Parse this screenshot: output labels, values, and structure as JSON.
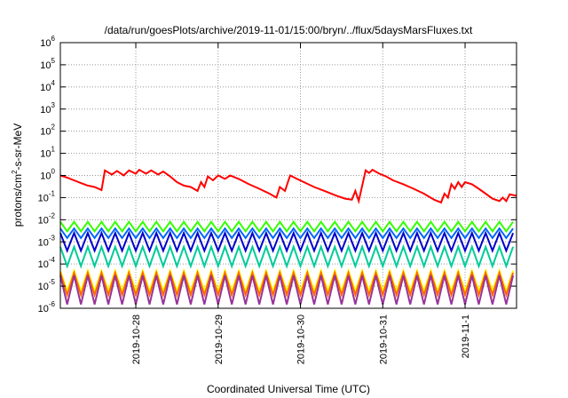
{
  "chart_data": {
    "type": "line",
    "title": "/data/run/goesPlots/archive/2019-11-01/15:00/bryn/../flux/5daysMarsFluxes.txt",
    "xlabel": "Coordinated Universal Time (UTC)",
    "ylabel": "protons/cm²-s-sr-MeV",
    "ylabel_parts": {
      "base": "protons/cm",
      "sup": "2",
      "rest": "-s-sr-MeV"
    },
    "y_scale": "log",
    "ylim": [
      1e-06,
      1000000.0
    ],
    "y_ticks": [
      {
        "base": "10",
        "exp": "-6",
        "value": 1e-06
      },
      {
        "base": "10",
        "exp": "-5",
        "value": 1e-05
      },
      {
        "base": "10",
        "exp": "-4",
        "value": 0.0001
      },
      {
        "base": "10",
        "exp": "-3",
        "value": 0.001
      },
      {
        "base": "10",
        "exp": "-2",
        "value": 0.01
      },
      {
        "base": "10",
        "exp": "-1",
        "value": 0.1
      },
      {
        "base": "10",
        "exp": "0",
        "value": 1
      },
      {
        "base": "10",
        "exp": "1",
        "value": 10.0
      },
      {
        "base": "10",
        "exp": "2",
        "value": 100.0
      },
      {
        "base": "10",
        "exp": "3",
        "value": 1000.0
      },
      {
        "base": "10",
        "exp": "4",
        "value": 10000.0
      },
      {
        "base": "10",
        "exp": "5",
        "value": 100000.0
      },
      {
        "base": "10",
        "exp": "6",
        "value": 1000000.0
      }
    ],
    "xlim": [
      "2019-10-27T02:00",
      "2019-11-01T15:00"
    ],
    "x_ticks": [
      "2019-10-28",
      "2019-10-29",
      "2019-10-30",
      "2019-10-31",
      "2019-11-1"
    ],
    "grid": true,
    "series": [
      {
        "color": "#ff0000",
        "points": [
          [
            "2019-10-27T02:00",
            1.0
          ],
          [
            "2019-10-27T04:00",
            0.8
          ],
          [
            "2019-10-27T06:00",
            0.6
          ],
          [
            "2019-10-27T08:00",
            0.45
          ],
          [
            "2019-10-27T10:00",
            0.35
          ],
          [
            "2019-10-27T12:00",
            0.3
          ],
          [
            "2019-10-27T14:00",
            0.22
          ],
          [
            "2019-10-27T15:00",
            1.7
          ],
          [
            "2019-10-27T17:00",
            1.1
          ],
          [
            "2019-10-27T18:30",
            1.6
          ],
          [
            "2019-10-27T20:30",
            1.0
          ],
          [
            "2019-10-27T22:00",
            1.7
          ],
          [
            "2019-10-28T00:00",
            1.2
          ],
          [
            "2019-10-28T01:00",
            1.8
          ],
          [
            "2019-10-28T03:00",
            1.2
          ],
          [
            "2019-10-28T04:30",
            1.7
          ],
          [
            "2019-10-28T06:30",
            1.1
          ],
          [
            "2019-10-28T08:00",
            1.5
          ],
          [
            "2019-10-28T10:00",
            0.9
          ],
          [
            "2019-10-28T12:00",
            0.5
          ],
          [
            "2019-10-28T14:00",
            0.35
          ],
          [
            "2019-10-28T16:00",
            0.3
          ],
          [
            "2019-10-28T18:00",
            0.2
          ],
          [
            "2019-10-28T19:00",
            0.5
          ],
          [
            "2019-10-28T20:00",
            0.3
          ],
          [
            "2019-10-28T21:00",
            0.9
          ],
          [
            "2019-10-28T22:30",
            0.6
          ],
          [
            "2019-10-29T00:00",
            1.0
          ],
          [
            "2019-10-29T02:00",
            0.7
          ],
          [
            "2019-10-29T03:30",
            1.0
          ],
          [
            "2019-10-29T06:00",
            0.7
          ],
          [
            "2019-10-29T09:00",
            0.4
          ],
          [
            "2019-10-29T12:00",
            0.25
          ],
          [
            "2019-10-29T15:00",
            0.15
          ],
          [
            "2019-10-29T17:00",
            0.1
          ],
          [
            "2019-10-29T18:00",
            0.3
          ],
          [
            "2019-10-29T19:30",
            0.2
          ],
          [
            "2019-10-29T21:00",
            1.0
          ],
          [
            "2019-10-29T23:00",
            0.7
          ],
          [
            "2019-10-30T01:00",
            0.5
          ],
          [
            "2019-10-30T04:00",
            0.3
          ],
          [
            "2019-10-30T07:00",
            0.2
          ],
          [
            "2019-10-30T10:00",
            0.13
          ],
          [
            "2019-10-30T13:00",
            0.09
          ],
          [
            "2019-10-30T15:00",
            0.08
          ],
          [
            "2019-10-30T16:00",
            0.2
          ],
          [
            "2019-10-30T17:00",
            0.07
          ],
          [
            "2019-10-30T19:00",
            1.7
          ],
          [
            "2019-10-30T20:00",
            1.3
          ],
          [
            "2019-10-30T21:00",
            1.8
          ],
          [
            "2019-10-30T23:00",
            1.2
          ],
          [
            "2019-10-31T01:00",
            0.9
          ],
          [
            "2019-10-31T03:00",
            0.6
          ],
          [
            "2019-10-31T06:00",
            0.4
          ],
          [
            "2019-10-31T09:00",
            0.25
          ],
          [
            "2019-10-31T12:00",
            0.15
          ],
          [
            "2019-10-31T15:00",
            0.08
          ],
          [
            "2019-10-31T17:00",
            0.06
          ],
          [
            "2019-10-31T18:00",
            0.15
          ],
          [
            "2019-10-31T19:00",
            0.1
          ],
          [
            "2019-10-31T20:00",
            0.4
          ],
          [
            "2019-10-31T21:00",
            0.25
          ],
          [
            "2019-10-31T22:00",
            0.5
          ],
          [
            "2019-10-31T23:00",
            0.3
          ],
          [
            "2019-11-01T00:00",
            0.5
          ],
          [
            "2019-11-01T02:00",
            0.4
          ],
          [
            "2019-11-01T04:00",
            0.25
          ],
          [
            "2019-11-01T06:00",
            0.15
          ],
          [
            "2019-11-01T08:00",
            0.09
          ],
          [
            "2019-11-01T10:00",
            0.07
          ],
          [
            "2019-11-01T11:00",
            0.1
          ],
          [
            "2019-11-01T12:00",
            0.07
          ],
          [
            "2019-11-01T13:00",
            0.14
          ],
          [
            "2019-11-01T15:00",
            0.12
          ]
        ]
      },
      {
        "color": "#33ff00",
        "start": "2019-10-27T02:00",
        "period_hours": 4,
        "high": 0.008,
        "low": 0.003
      },
      {
        "color": "#0066ff",
        "start": "2019-10-27T02:00",
        "period_hours": 4,
        "high": 0.004,
        "low": 0.0015
      },
      {
        "color": "#0000cc",
        "start": "2019-10-27T02:00",
        "period_hours": 4,
        "high": 0.0025,
        "low": 0.0004
      },
      {
        "color": "#00cc99",
        "start": "2019-10-27T02:00",
        "period_hours": 4,
        "high": 0.0006,
        "low": 8e-05
      },
      {
        "color": "#ffff00",
        "start": "2019-10-27T02:00",
        "period_hours": 4,
        "high": 5e-05,
        "low": 6e-06
      },
      {
        "color": "#ff6600",
        "start": "2019-10-27T02:00",
        "period_hours": 4,
        "high": 4e-05,
        "low": 4e-06
      },
      {
        "color": "#993399",
        "start": "2019-10-27T02:00",
        "period_hours": 4,
        "high": 3e-05,
        "low": 1.5e-06
      }
    ]
  }
}
